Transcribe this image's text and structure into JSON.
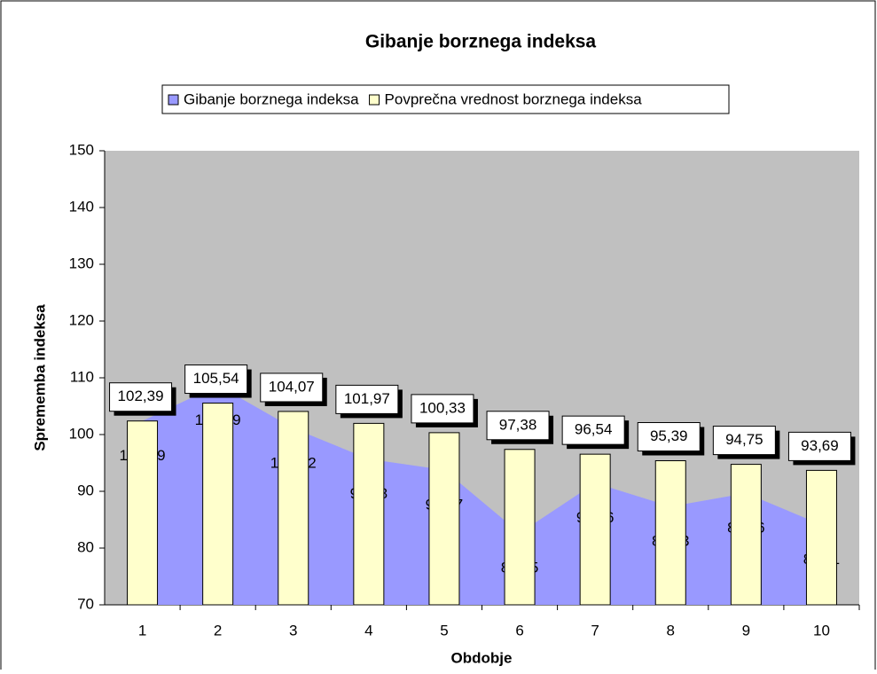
{
  "chart_data": {
    "type": "bar_area",
    "title": "Gibanje borznega indeksa",
    "x_label": "Obdobje",
    "y_label": "Sprememba indeksa",
    "categories": [
      "1",
      "2",
      "3",
      "4",
      "5",
      "6",
      "7",
      "8",
      "9",
      "10"
    ],
    "series": [
      {
        "name": "Gibanje borznega indeksa",
        "type": "area",
        "color": "#9999ff",
        "values": [
          102.39,
          108.69,
          101.12,
          95.68,
          93.77,
          82.65,
          91.46,
          87.33,
          89.66,
          84.11
        ],
        "value_labels": [
          "102,39",
          "108,69",
          "101,12",
          "95,68",
          "93,77",
          "82,65",
          "91,46",
          "87,33",
          "89,66",
          "84,11"
        ]
      },
      {
        "name": "Povprečna vrednost borznega indeksa",
        "type": "bar",
        "color": "#ffffcc",
        "values": [
          102.39,
          105.54,
          104.07,
          101.97,
          100.33,
          97.38,
          96.54,
          95.39,
          94.75,
          93.69
        ],
        "value_labels": [
          "102,39",
          "105,54",
          "104,07",
          "101,97",
          "100,33",
          "97,38",
          "96,54",
          "95,39",
          "94,75",
          "93,69"
        ]
      }
    ],
    "ylim": [
      70,
      150
    ],
    "yticks": [
      70,
      80,
      90,
      100,
      110,
      120,
      130,
      140,
      150
    ],
    "legend": "top",
    "plot_background": "#c0c0c0"
  }
}
